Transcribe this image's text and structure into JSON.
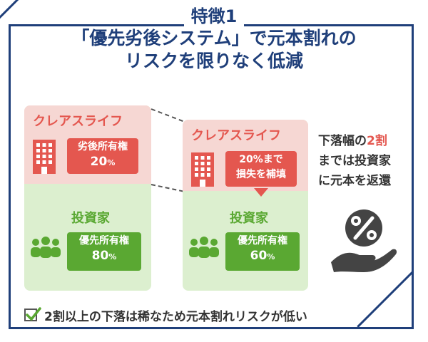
{
  "heading": {
    "line1": "特徴1",
    "line2": "「優先劣後システム」で元本割れの",
    "line3": "リスクを限りなく低減"
  },
  "left_card": {
    "company": "クレアスライフ",
    "company_badge": {
      "line1": "劣後所有権",
      "value": "20",
      "unit": "%"
    },
    "investor": "投資家",
    "investor_badge": {
      "line1": "優先所有権",
      "value": "80",
      "unit": "%"
    }
  },
  "right_card": {
    "company": "クレアスライフ",
    "company_badge": {
      "line1": "20%まで",
      "line2": "損失を補填"
    },
    "investor": "投資家",
    "investor_badge": {
      "line1": "優先所有権",
      "value": "60",
      "unit": "%"
    }
  },
  "side_text": {
    "part1": "下落幅の",
    "accent": "2割",
    "line2": "までは投資家",
    "line3": "に元本を返還"
  },
  "footer": {
    "text": "2割以上の下落は稀なため元本割れリスクが低い"
  },
  "icons": {
    "building": "building-icon",
    "people": "people-icon",
    "hand_percent": "hand-percent-icon",
    "check": "check-icon"
  },
  "colors": {
    "navy": "#1f3f7a",
    "red": "#e4574f",
    "pink": "#f6d7d3",
    "green": "#5aa832",
    "light_green": "#dcefcf"
  }
}
